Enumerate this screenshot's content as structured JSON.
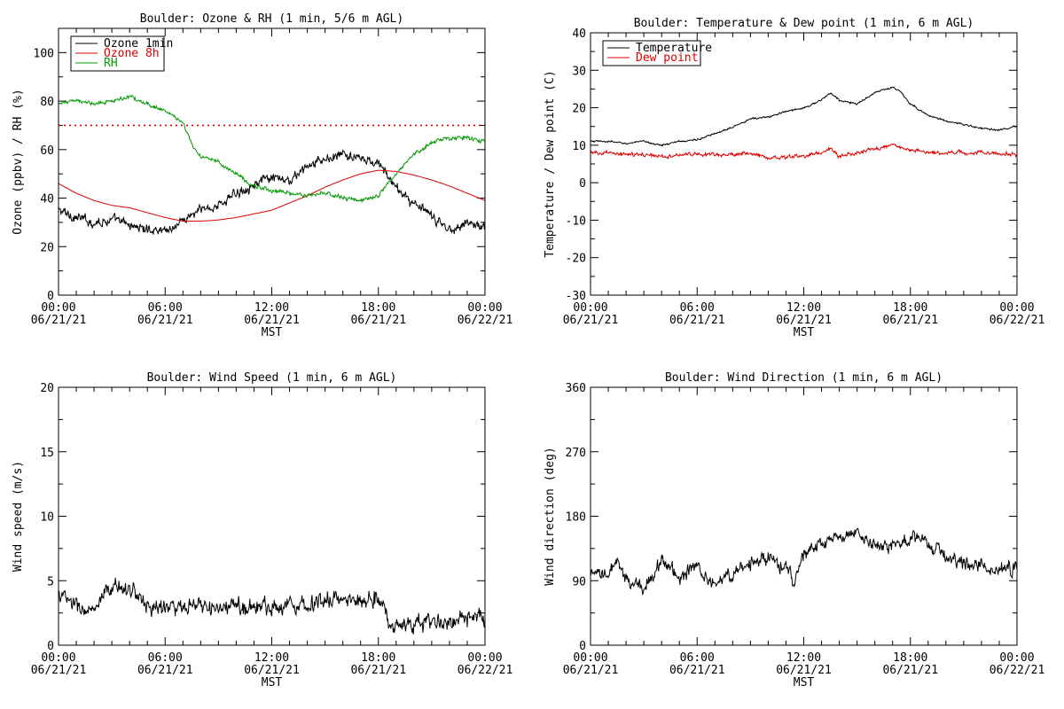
{
  "chart_data": [
    {
      "type": "line",
      "title": "Boulder: Ozone & RH (1 min, 5/6 m AGL)",
      "xlabel": "MST",
      "ylabel": "Ozone (ppbv) / RH (%)",
      "ylim": [
        0,
        110
      ],
      "yticks": [
        0,
        20,
        40,
        60,
        80,
        100
      ],
      "xlim": [
        0,
        24
      ],
      "xticks": [
        {
          "time": "00:00",
          "date": "06/21/21"
        },
        {
          "time": "06:00",
          "date": "06/21/21"
        },
        {
          "time": "12:00",
          "date": "06/21/21"
        },
        {
          "time": "18:00",
          "date": "06/21/21"
        },
        {
          "time": "00:00",
          "date": "06/22/21"
        }
      ],
      "legend_position": "top-left",
      "reference_line": {
        "y": 70,
        "color": "#dd0000",
        "style": "dotted"
      },
      "series": [
        {
          "name": "Ozone 1min",
          "color": "#000000",
          "noise": 2.5,
          "x": [
            0,
            1,
            2,
            3,
            4,
            5,
            6,
            6.5,
            7,
            8,
            9,
            10,
            11,
            12,
            13,
            14,
            15,
            16,
            17,
            18,
            18.5,
            19,
            20,
            21,
            22,
            23,
            24
          ],
          "y": [
            35,
            32,
            30,
            31,
            29,
            27,
            27,
            28,
            31,
            35,
            37,
            42,
            46,
            48,
            47,
            53,
            56,
            58,
            56,
            54,
            50,
            44,
            38,
            32,
            27,
            30,
            28
          ]
        },
        {
          "name": "Ozone 8h",
          "color": "#dd0000",
          "noise": 0,
          "x": [
            0,
            1,
            2,
            3,
            4,
            5,
            6,
            7,
            8,
            9,
            10,
            11,
            12,
            13,
            14,
            15,
            16,
            17,
            18,
            19,
            20,
            21,
            22,
            23,
            24
          ],
          "y": [
            46,
            42,
            39,
            37,
            36,
            34,
            32,
            30.5,
            30.5,
            31,
            32,
            33.5,
            35,
            38,
            41,
            44.5,
            47.5,
            50,
            51.5,
            51,
            49.5,
            47.5,
            45,
            42,
            39
          ]
        },
        {
          "name": "RH",
          "color": "#009900",
          "noise": 1.0,
          "x": [
            0,
            1,
            2,
            3,
            4,
            5,
            6,
            7,
            7.5,
            8,
            9,
            10,
            11,
            12,
            13,
            14,
            15,
            16,
            17,
            18,
            19,
            20,
            21,
            22,
            23,
            24
          ],
          "y": [
            79,
            80,
            79,
            80,
            82,
            79,
            76,
            71,
            62,
            57,
            55,
            50,
            45,
            43,
            42,
            41,
            42,
            40,
            39,
            41,
            50,
            58,
            63,
            65,
            65,
            63
          ]
        }
      ]
    },
    {
      "type": "line",
      "title": "Boulder: Temperature & Dew point (1 min, 6 m AGL)",
      "xlabel": "MST",
      "ylabel": "Temperature / Dew point (C)",
      "ylim": [
        -30,
        40
      ],
      "yticks": [
        -30,
        -20,
        -10,
        0,
        10,
        20,
        30,
        40
      ],
      "xlim": [
        0,
        24
      ],
      "xticks": [
        {
          "time": "00:00",
          "date": "06/21/21"
        },
        {
          "time": "06:00",
          "date": "06/21/21"
        },
        {
          "time": "12:00",
          "date": "06/21/21"
        },
        {
          "time": "18:00",
          "date": "06/21/21"
        },
        {
          "time": "00:00",
          "date": "06/22/21"
        }
      ],
      "legend_position": "top-left",
      "series": [
        {
          "name": "Temperature",
          "color": "#000000",
          "noise": 0.3,
          "x": [
            0,
            1,
            2,
            3,
            4,
            5,
            6,
            7,
            8,
            9,
            10,
            11,
            12,
            13,
            13.5,
            14,
            15,
            16,
            17,
            17.5,
            18,
            19,
            20,
            21,
            22,
            23,
            24
          ],
          "y": [
            11,
            11,
            10.5,
            11,
            10,
            11,
            11.5,
            13,
            15,
            17,
            17.5,
            19,
            20,
            22,
            24,
            22,
            21,
            24,
            25.5,
            24,
            21,
            18,
            16.5,
            15.5,
            14.5,
            14,
            15
          ]
        },
        {
          "name": "Dew point",
          "color": "#dd0000",
          "noise": 0.6,
          "x": [
            0,
            2,
            3,
            4,
            5,
            6,
            8,
            9,
            10,
            11,
            12,
            13,
            13.5,
            14,
            15,
            16,
            17,
            18,
            19,
            20,
            22,
            24
          ],
          "y": [
            8,
            7.5,
            7.5,
            7,
            7.5,
            7.5,
            7.5,
            8,
            6.5,
            7,
            7,
            8,
            9,
            7,
            8,
            9,
            10,
            9,
            8,
            8,
            8,
            7.5
          ]
        }
      ]
    },
    {
      "type": "line",
      "title": "Boulder: Wind Speed (1 min, 6 m AGL)",
      "xlabel": "MST",
      "ylabel": "Wind speed (m/s)",
      "ylim": [
        0,
        20
      ],
      "yticks": [
        0,
        5,
        10,
        15,
        20
      ],
      "xlim": [
        0,
        24
      ],
      "xticks": [
        {
          "time": "00:00",
          "date": "06/21/21"
        },
        {
          "time": "06:00",
          "date": "06/21/21"
        },
        {
          "time": "12:00",
          "date": "06/21/21"
        },
        {
          "time": "18:00",
          "date": "06/21/21"
        },
        {
          "time": "00:00",
          "date": "06/22/21"
        }
      ],
      "series": [
        {
          "name": "",
          "color": "#000000",
          "noise": 0.8,
          "x": [
            0,
            1,
            2,
            3,
            4,
            5,
            6,
            7,
            8,
            9,
            10,
            11,
            12,
            13,
            14,
            15,
            16,
            17,
            18,
            18.3,
            18.6,
            19,
            20,
            21,
            22,
            23,
            24
          ],
          "y": [
            4,
            3,
            2.5,
            4.5,
            4.5,
            3,
            3,
            2.8,
            3,
            2.8,
            3,
            3,
            3,
            3.2,
            3.2,
            3.5,
            3.5,
            3.5,
            3.8,
            3,
            1.5,
            1.5,
            1.6,
            1.8,
            1.8,
            2,
            2
          ]
        }
      ]
    },
    {
      "type": "line",
      "title": "Boulder: Wind Direction (1 min, 6 m AGL)",
      "xlabel": "MST",
      "ylabel": "Wind direction (deg)",
      "ylim": [
        0,
        360
      ],
      "yticks": [
        0,
        90,
        180,
        270,
        360
      ],
      "xlim": [
        0,
        24
      ],
      "xticks": [
        {
          "time": "00:00",
          "date": "06/21/21"
        },
        {
          "time": "06:00",
          "date": "06/21/21"
        },
        {
          "time": "12:00",
          "date": "06/21/21"
        },
        {
          "time": "18:00",
          "date": "06/21/21"
        },
        {
          "time": "00:00",
          "date": "06/22/21"
        }
      ],
      "series": [
        {
          "name": "",
          "color": "#000000",
          "noise": 12,
          "x": [
            0,
            1,
            1.5,
            2,
            3,
            4,
            5,
            6,
            7,
            8,
            9,
            10,
            11,
            11.5,
            12,
            13,
            14,
            15,
            16,
            17,
            18,
            18.5,
            19,
            20,
            21,
            22,
            23,
            24
          ],
          "y": [
            95,
            100,
            115,
            90,
            80,
            120,
            95,
            110,
            85,
            100,
            115,
            120,
            110,
            85,
            130,
            140,
            150,
            155,
            140,
            140,
            145,
            150,
            140,
            125,
            115,
            110,
            105,
            110
          ]
        }
      ]
    }
  ]
}
